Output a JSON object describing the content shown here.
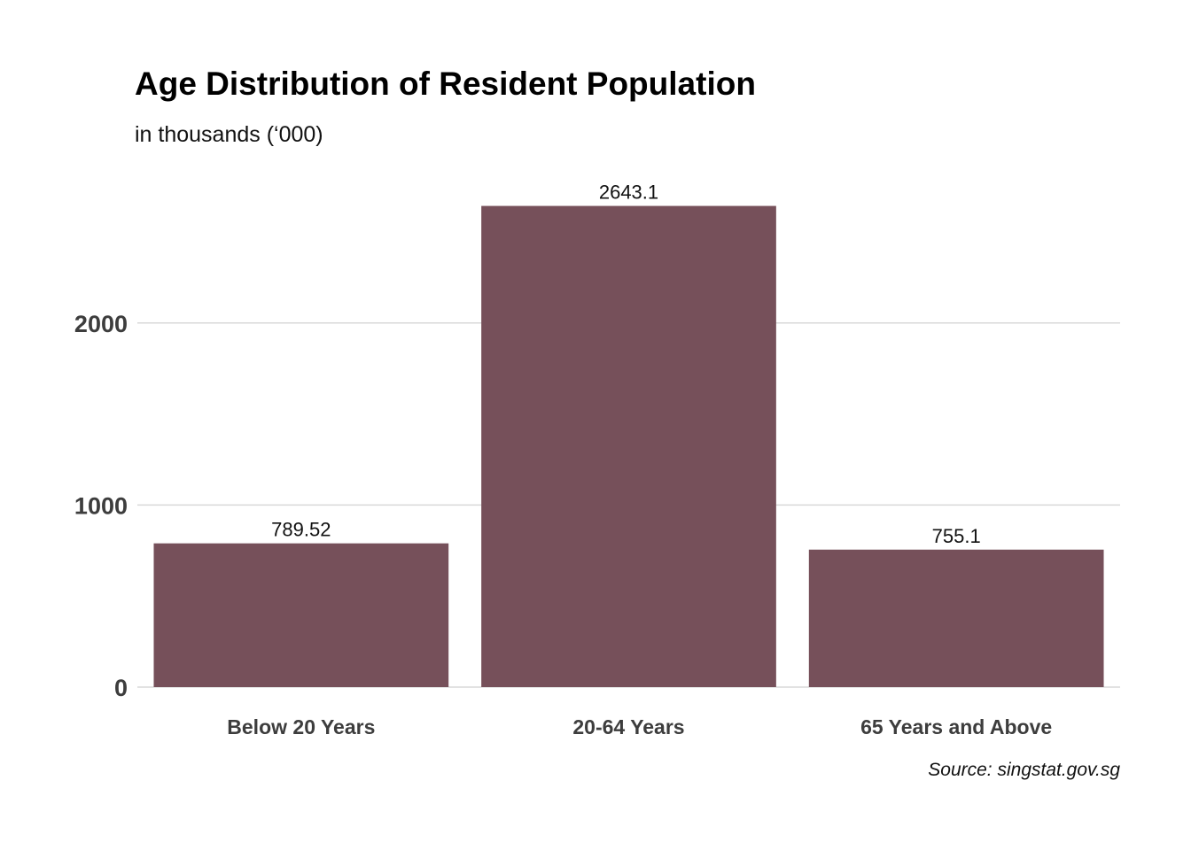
{
  "chart_data": {
    "type": "bar",
    "title": "Age Distribution of Resident Population",
    "subtitle": "in thousands (‘000)",
    "categories": [
      "Below 20 Years",
      "20-64 Years",
      "65 Years and Above"
    ],
    "values": [
      789.52,
      2643.1,
      755.1
    ],
    "value_labels": [
      "789.52",
      "2643.1",
      "755.1"
    ],
    "xlabel": "",
    "ylabel": "",
    "ylim": [
      0,
      2643.1
    ],
    "yticks": [
      0,
      1000,
      2000
    ],
    "ytick_labels": [
      "0",
      "1000",
      "2000"
    ],
    "grid": true,
    "legend": "none",
    "bar_color": "#76505A",
    "caption": "Source: singstat.gov.sg"
  }
}
